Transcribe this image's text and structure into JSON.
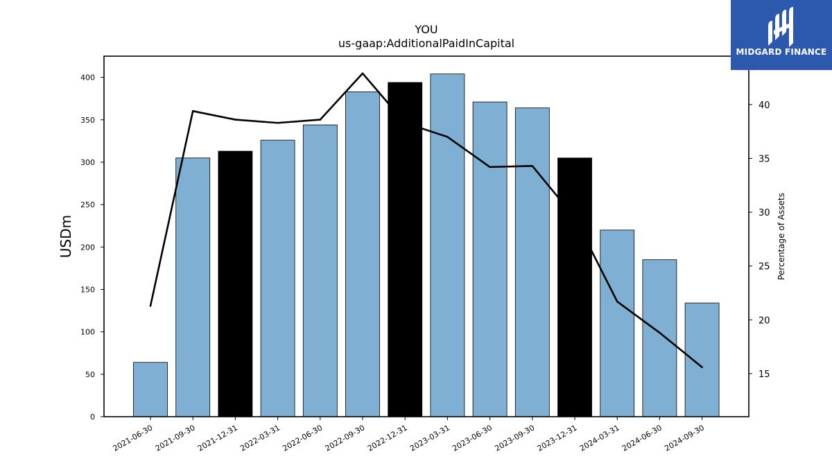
{
  "chart_data": {
    "type": "bar",
    "title": "YOU",
    "subtitle": "us-gaap:AdditionalPaidInCapital",
    "ylabel": "USDm",
    "y2label": "Percentage of Assets",
    "categories": [
      "2021-06-30",
      "2021-09-30",
      "2021-12-31",
      "2022-03-31",
      "2022-06-30",
      "2022-09-30",
      "2022-12-31",
      "2023-03-31",
      "2023-06-30",
      "2023-09-30",
      "2023-12-31",
      "2024-03-31",
      "2024-06-30",
      "2024-09-30"
    ],
    "series": [
      {
        "values": [
          64,
          305,
          313,
          326,
          344,
          383,
          394,
          404,
          371,
          364,
          305,
          220,
          185,
          134
        ],
        "colors": [
          "#7fb0d3",
          "#7fb0d3",
          "#000000",
          "#7fb0d3",
          "#7fb0d3",
          "#7fb0d3",
          "#000000",
          "#7fb0d3",
          "#7fb0d3",
          "#7fb0d3",
          "#000000",
          "#7fb0d3",
          "#7fb0d3",
          "#7fb0d3"
        ]
      },
      {
        "axis": "right",
        "type": "line",
        "color": "#000000",
        "values": [
          21.3,
          39.4,
          38.6,
          38.3,
          38.6,
          42.9,
          38.3,
          37.0,
          34.2,
          34.3,
          29.5,
          21.7,
          18.8,
          15.6
        ]
      }
    ],
    "ylim": [
      0,
      425
    ],
    "yticks": [
      0,
      50,
      100,
      150,
      200,
      250,
      300,
      350,
      400
    ],
    "y2lim": [
      11.0,
      44.5
    ],
    "y2ticks": [
      15,
      20,
      25,
      30,
      35,
      40
    ],
    "grid": false,
    "legend": "none"
  },
  "logo": {
    "text": "MIDGARD FINANCE",
    "background": "#2c59ad",
    "icon": "midgard-logo-icon"
  }
}
